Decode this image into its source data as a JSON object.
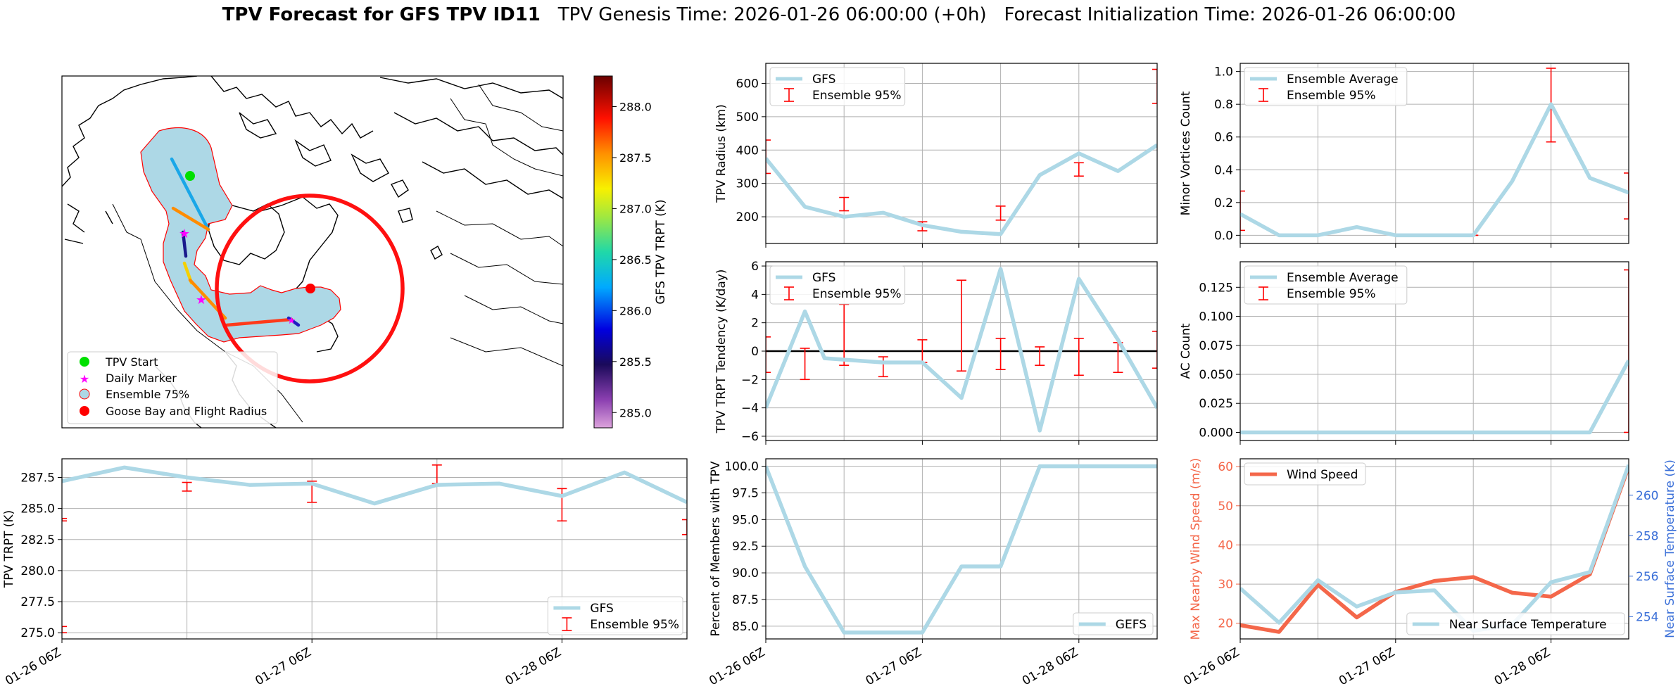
{
  "title": {
    "bold": "TPV Forecast for GFS TPV ID11",
    "rest": "TPV Genesis Time: 2026-01-26 06:00:00 (+0h)   Forecast Initialization Time: 2026-01-26 06:00:00"
  },
  "map": {
    "legend": [
      "TPV Start",
      "Daily Marker",
      "Ensemble 75%",
      "Goose Bay and Flight Radius"
    ],
    "colorbar_label": "GFS TPV TRPT (K)",
    "colorbar_ticks": [
      "288.0",
      "287.5",
      "287.0",
      "286.5",
      "286.0",
      "285.5",
      "285.0"
    ],
    "colorbar_range": [
      284.85,
      288.3
    ]
  },
  "colors": {
    "gfs": "#add8e6",
    "ensemble": "#ff0000",
    "wind": "#f4674a",
    "temp_axis": "#3a6fd8"
  },
  "chart_data": [
    {
      "id": "radius",
      "type": "line",
      "ylabel": "TPV Radius (km)",
      "ylim": [
        120,
        660
      ],
      "yticks": [
        "200",
        "300",
        "400",
        "500",
        "600"
      ],
      "ytick_values": [
        200,
        300,
        400,
        500,
        600
      ],
      "legend": [
        "GFS",
        "Ensemble 95%"
      ],
      "legend_pos": "upper-left",
      "series": [
        {
          "name": "GFS",
          "x": [
            0,
            6,
            12,
            18,
            24,
            30,
            36,
            42,
            48,
            54,
            60
          ],
          "values": [
            375,
            230,
            200,
            212,
            175,
            155,
            148,
            325,
            390,
            337,
            415
          ]
        }
      ],
      "errorbars": [
        {
          "x": 0,
          "lo": 330,
          "hi": 430
        },
        {
          "x": 12,
          "lo": 218,
          "hi": 258
        },
        {
          "x": 24,
          "lo": 158,
          "hi": 185
        },
        {
          "x": 36,
          "lo": 190,
          "hi": 232
        },
        {
          "x": 48,
          "lo": 322,
          "hi": 362
        },
        {
          "x": 60,
          "lo": 540,
          "hi": 642
        }
      ]
    },
    {
      "id": "minor",
      "type": "line",
      "ylabel": "Minor Vortices Count",
      "ylim": [
        -0.05,
        1.05
      ],
      "yticks": [
        "0.0",
        "0.2",
        "0.4",
        "0.6",
        "0.8",
        "1.0"
      ],
      "ytick_values": [
        0,
        0.2,
        0.4,
        0.6,
        0.8,
        1.0
      ],
      "legend": [
        "Ensemble Average",
        "Ensemble 95%"
      ],
      "legend_pos": "upper-left",
      "series": [
        {
          "name": "Ensemble Average",
          "x": [
            0,
            6,
            12,
            18,
            24,
            30,
            36,
            42,
            48,
            54,
            60
          ],
          "values": [
            0.13,
            0.0,
            0.0,
            0.05,
            0.0,
            0.0,
            0.0,
            0.33,
            0.8,
            0.35,
            0.26
          ]
        }
      ],
      "errorbars": [
        {
          "x": 0,
          "lo": 0.03,
          "hi": 0.27
        },
        {
          "x": 12,
          "lo": 0.0,
          "hi": 0.0
        },
        {
          "x": 24,
          "lo": 0.0,
          "hi": 0.0
        },
        {
          "x": 36,
          "lo": 0.0,
          "hi": 0.0
        },
        {
          "x": 48,
          "lo": 0.57,
          "hi": 1.02
        },
        {
          "x": 60,
          "lo": 0.1,
          "hi": 0.38
        }
      ]
    },
    {
      "id": "tendency",
      "type": "line",
      "ylabel": "TPV TRPT Tendency (K/day)",
      "ylim": [
        -6.3,
        6.3
      ],
      "yticks": [
        "−6",
        "−4",
        "−2",
        "0",
        "2",
        "4",
        "6"
      ],
      "ytick_values": [
        -6,
        -4,
        -2,
        0,
        2,
        4,
        6
      ],
      "zero_line": true,
      "legend": [
        "GFS",
        "Ensemble 95%"
      ],
      "legend_pos": "upper-left",
      "series": [
        {
          "name": "GFS",
          "x": [
            0,
            6,
            9,
            12,
            18,
            24,
            30,
            36,
            42,
            48,
            54,
            60
          ],
          "values": [
            -4.0,
            2.8,
            -0.5,
            -0.6,
            -0.8,
            -0.8,
            -3.3,
            5.8,
            -5.6,
            5.1,
            0.8,
            -4.0
          ]
        }
      ],
      "errorbars": [
        {
          "x": 0,
          "lo": -1.5,
          "hi": 1.0
        },
        {
          "x": 6,
          "lo": -2.0,
          "hi": 0.2
        },
        {
          "x": 12,
          "lo": -1.0,
          "hi": 3.3
        },
        {
          "x": 18,
          "lo": -1.8,
          "hi": -0.4
        },
        {
          "x": 24,
          "lo": -0.8,
          "hi": 0.8
        },
        {
          "x": 30,
          "lo": -1.4,
          "hi": 5.0
        },
        {
          "x": 36,
          "lo": -1.3,
          "hi": 0.9
        },
        {
          "x": 42,
          "lo": -1.0,
          "hi": 0.3
        },
        {
          "x": 48,
          "lo": -1.7,
          "hi": 0.9
        },
        {
          "x": 54,
          "lo": -1.5,
          "hi": 0.6
        },
        {
          "x": 60,
          "lo": -1.2,
          "hi": 1.4
        }
      ]
    },
    {
      "id": "ac",
      "type": "line",
      "ylabel": "AC Count",
      "ylim": [
        -0.007,
        0.147
      ],
      "yticks": [
        "0.000",
        "0.025",
        "0.050",
        "0.075",
        "0.100",
        "0.125"
      ],
      "ytick_values": [
        0,
        0.025,
        0.05,
        0.075,
        0.1,
        0.125
      ],
      "legend": [
        "Ensemble Average",
        "Ensemble 95%"
      ],
      "legend_pos": "upper-left",
      "series": [
        {
          "name": "Ensemble Average",
          "x": [
            0,
            6,
            12,
            18,
            24,
            30,
            36,
            42,
            48,
            54,
            60
          ],
          "values": [
            0,
            0,
            0,
            0,
            0,
            0,
            0,
            0,
            0,
            0,
            0.062
          ]
        }
      ],
      "errorbars": [
        {
          "x": 0,
          "lo": 0,
          "hi": 0
        },
        {
          "x": 12,
          "lo": 0,
          "hi": 0
        },
        {
          "x": 24,
          "lo": 0,
          "hi": 0
        },
        {
          "x": 36,
          "lo": 0,
          "hi": 0
        },
        {
          "x": 48,
          "lo": 0,
          "hi": 0
        },
        {
          "x": 60,
          "lo": 0,
          "hi": 0.14
        }
      ]
    },
    {
      "id": "trpt",
      "type": "line",
      "ylabel": "TPV TRPT (K)",
      "ylim": [
        274.5,
        289.0
      ],
      "yticks": [
        "275.0",
        "277.5",
        "280.0",
        "282.5",
        "285.0",
        "287.5"
      ],
      "ytick_values": [
        275,
        277.5,
        280,
        282.5,
        285,
        287.5
      ],
      "legend": [
        "GFS",
        "Ensemble 95%"
      ],
      "legend_pos": "lower-right",
      "xtick_labels": [
        "01-26 06Z",
        "01-27 06Z",
        "01-28 06Z"
      ],
      "xtick_values": [
        0,
        24,
        48
      ],
      "series": [
        {
          "name": "GFS",
          "x": [
            0,
            6,
            12,
            18,
            24,
            30,
            36,
            42,
            48,
            54,
            60
          ],
          "values": [
            287.2,
            288.3,
            287.5,
            286.9,
            287.0,
            285.4,
            286.9,
            287.0,
            286.0,
            287.9,
            285.5
          ]
        }
      ],
      "errorbars": [
        {
          "x": 0,
          "lo": 275.0,
          "hi": 275.5
        },
        {
          "x": 0,
          "lo": 284.0,
          "hi": 284.2
        },
        {
          "x": 12,
          "lo": 286.4,
          "hi": 287.1
        },
        {
          "x": 24,
          "lo": 285.5,
          "hi": 287.2
        },
        {
          "x": 36,
          "lo": 287.0,
          "hi": 288.5
        },
        {
          "x": 48,
          "lo": 284.0,
          "hi": 286.6
        },
        {
          "x": 60,
          "lo": 282.9,
          "hi": 284.1
        }
      ]
    },
    {
      "id": "members",
      "type": "line",
      "ylabel": "Percent of Members with TPV",
      "ylim": [
        83.8,
        100.7
      ],
      "yticks": [
        "85.0",
        "87.5",
        "90.0",
        "92.5",
        "95.0",
        "97.5",
        "100.0"
      ],
      "ytick_values": [
        85,
        87.5,
        90,
        92.5,
        95,
        97.5,
        100
      ],
      "legend": [
        "GEFS"
      ],
      "legend_pos": "lower-right",
      "xtick_labels": [
        "01-26 06Z",
        "01-27 06Z",
        "01-28 06Z"
      ],
      "xtick_values": [
        0,
        24,
        48
      ],
      "series": [
        {
          "name": "GEFS",
          "x": [
            0,
            6,
            12,
            18,
            24,
            30,
            36,
            42,
            48,
            54,
            60
          ],
          "values": [
            100,
            90.6,
            84.4,
            84.4,
            84.4,
            90.6,
            90.6,
            100,
            100,
            100,
            100
          ]
        }
      ]
    },
    {
      "id": "wind",
      "type": "line",
      "ylabel": "Max Nearby Wind Speed (m/s)",
      "ylim": [
        16,
        62
      ],
      "yticks": [
        "20",
        "30",
        "40",
        "50",
        "60"
      ],
      "ytick_values": [
        20,
        30,
        40,
        50,
        60
      ],
      "y2label": "Near Surface Temperature (K)",
      "y2lim": [
        252.9,
        261.8
      ],
      "y2ticks": [
        "254",
        "256",
        "258",
        "260"
      ],
      "y2tick_values": [
        254,
        256,
        258,
        260
      ],
      "legend": [
        "Wind Speed"
      ],
      "legend2": [
        "Near Surface Temperature"
      ],
      "xtick_labels": [
        "01-26 06Z",
        "01-27 06Z",
        "01-28 06Z"
      ],
      "xtick_values": [
        0,
        24,
        48
      ],
      "series": [
        {
          "name": "Wind Speed",
          "axis": "left",
          "x": [
            0,
            6,
            12,
            18,
            24,
            30,
            36,
            42,
            48,
            54,
            60
          ],
          "values": [
            19.5,
            17.8,
            29.8,
            21.5,
            28.0,
            30.8,
            31.8,
            27.8,
            26.8,
            32.5,
            60.0
          ]
        },
        {
          "name": "Near Surface Temperature",
          "axis": "right",
          "x": [
            0,
            6,
            12,
            18,
            24,
            30,
            36,
            42,
            48,
            54,
            60
          ],
          "values": [
            255.4,
            253.7,
            255.8,
            254.5,
            255.2,
            255.3,
            253.3,
            253.6,
            255.7,
            256.2,
            261.5
          ]
        }
      ]
    }
  ]
}
